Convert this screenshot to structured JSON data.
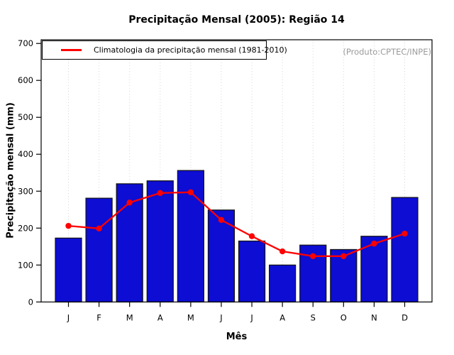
{
  "chart_data": {
    "type": "bar",
    "title": "Precipitação Mensal (2005): Região 14",
    "xlabel": "Mês",
    "ylabel": "Precipitação mensal (mm)",
    "categories": [
      "J",
      "F",
      "M",
      "A",
      "M",
      "J",
      "J",
      "A",
      "S",
      "O",
      "N",
      "D"
    ],
    "series": [
      {
        "type": "bar",
        "values": [
          173,
          281,
          320,
          328,
          356,
          249,
          165,
          100,
          154,
          142,
          178,
          283
        ]
      },
      {
        "type": "line",
        "name": "Climatologia da precipitação mensal (1981-2010)",
        "values": [
          206,
          199,
          269,
          295,
          297,
          222,
          178,
          137,
          124,
          124,
          158,
          185
        ]
      }
    ],
    "ylim": [
      0,
      710
    ],
    "y_ticks": [
      0,
      100,
      200,
      300,
      400,
      500,
      600,
      700
    ],
    "grid": "vertical-dotted",
    "legend": {
      "position": "top-left",
      "label": "Climatologia da precipitação mensal (1981-2010)"
    },
    "annotation": "(Produto:CPTEC/INPE)",
    "colors": {
      "bar_fill": "#0d0dd3",
      "bar_border": "#111111",
      "line": "#ff0000",
      "grid": "#d6d6d6",
      "axis": "#000000",
      "annotation_text": "#9b9b9b"
    }
  }
}
